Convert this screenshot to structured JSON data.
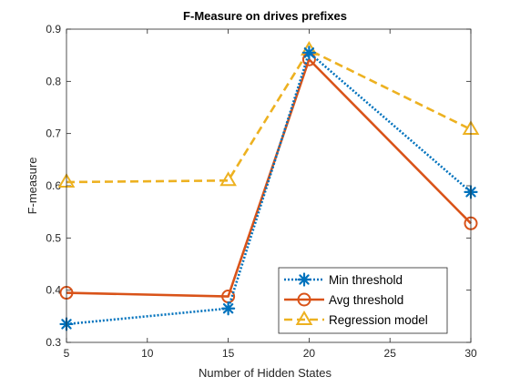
{
  "chart_data": {
    "type": "line",
    "title": "F-Measure on drives prefixes",
    "xlabel": "Number of Hidden States",
    "ylabel": "F-measure",
    "xlim": [
      5,
      30
    ],
    "ylim": [
      0.3,
      0.9
    ],
    "xticks": [
      "5",
      "10",
      "15",
      "20",
      "25",
      "30"
    ],
    "yticks": [
      "0.3",
      "0.4",
      "0.5",
      "0.6",
      "0.7",
      "0.8",
      "0.9"
    ],
    "x": [
      5,
      15,
      20,
      30
    ],
    "grid": false,
    "box": true,
    "legend_position": "bottom-right",
    "series": [
      {
        "name": "Min threshold",
        "values": [
          0.335,
          0.365,
          0.855,
          0.588
        ],
        "color": "#0072BD",
        "line_style": "dotted",
        "marker": "asterisk"
      },
      {
        "name": "Avg threshold",
        "values": [
          0.395,
          0.388,
          0.842,
          0.528
        ],
        "color": "#D95319",
        "line_style": "solid",
        "marker": "circle"
      },
      {
        "name": "Regression model",
        "values": [
          0.607,
          0.61,
          0.86,
          0.708
        ],
        "color": "#EDB120",
        "line_style": "dashed",
        "marker": "triangle"
      }
    ]
  }
}
